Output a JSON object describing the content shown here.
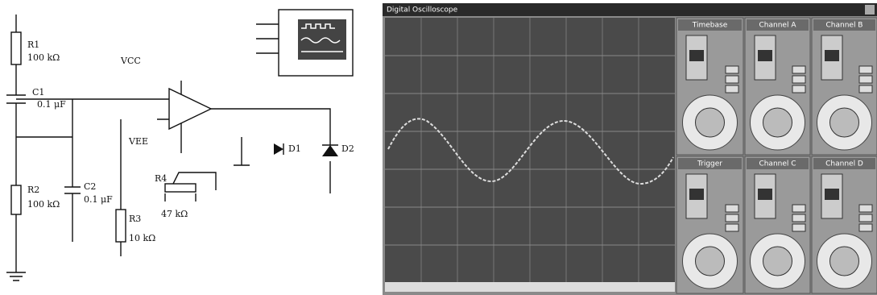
{
  "schematic": {
    "components": [
      {
        "ref": "R1",
        "value": "100 kΩ"
      },
      {
        "ref": "C1",
        "value": "0.1 μF"
      },
      {
        "ref": "R2",
        "value": "100 kΩ"
      },
      {
        "ref": "C2",
        "value": "0.1 μF"
      },
      {
        "ref": "R3",
        "value": "10 kΩ"
      },
      {
        "ref": "R4",
        "value": "47 kΩ"
      }
    ],
    "supplies": [
      "VCC",
      "VEE"
    ],
    "diodes": [
      "D1",
      "D2"
    ]
  },
  "oscilloscope": {
    "title": "Digital Oscilloscope",
    "panels": [
      "Timebase",
      "Channel A",
      "Channel B",
      "Trigger",
      "Channel C",
      "Channel D"
    ]
  }
}
